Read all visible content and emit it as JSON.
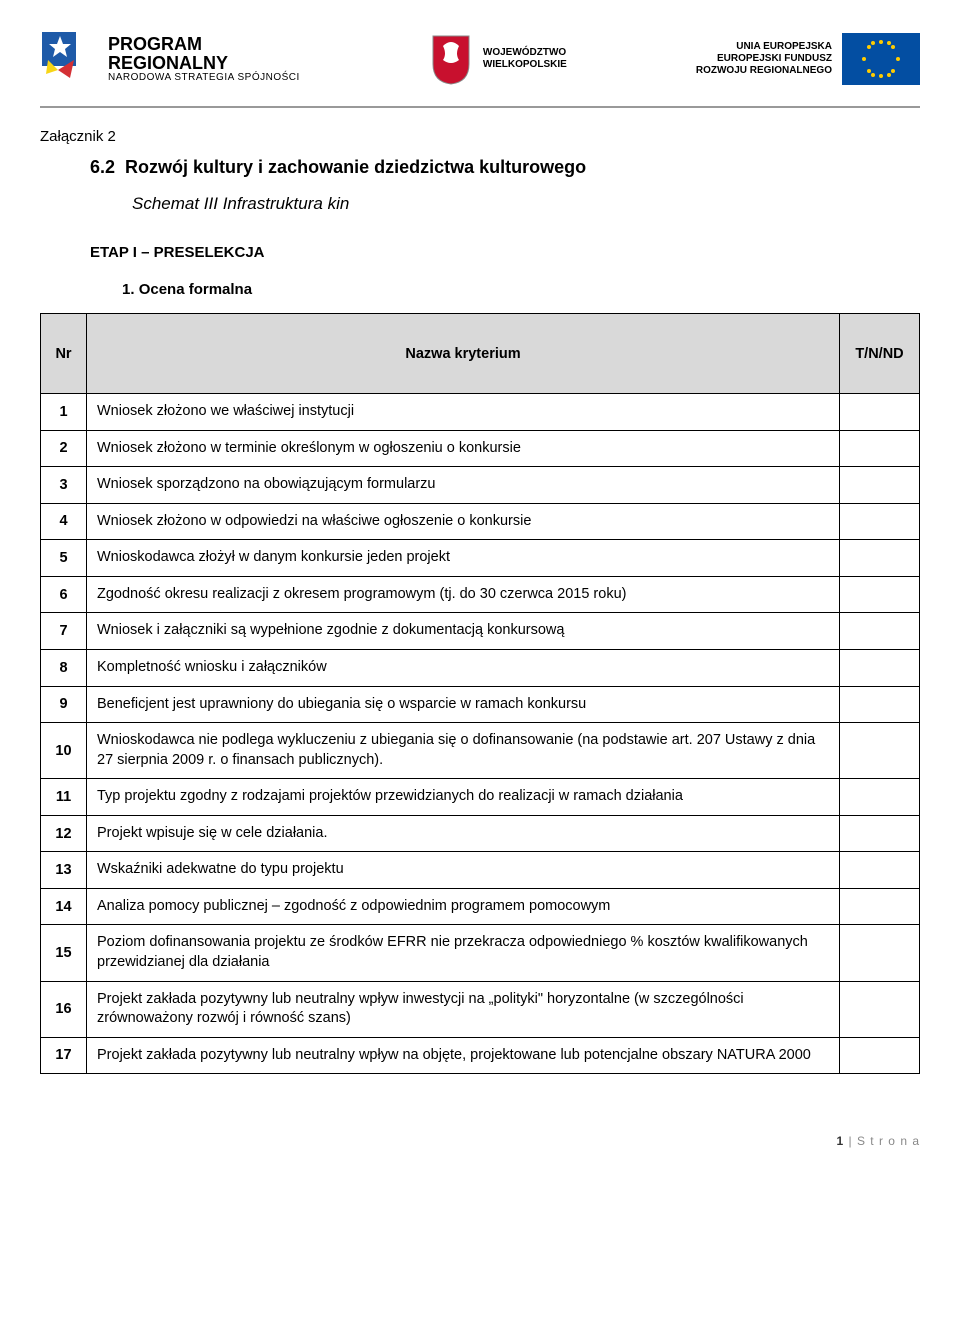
{
  "header": {
    "prog_logo": {
      "line1": "PROGRAM",
      "line2": "REGIONALNY",
      "sub": "NARODOWA STRATEGIA SPÓJNOŚCI"
    },
    "woj": {
      "line1": "WOJEWÓDZTWO",
      "line2": "WIELKOPOLSKIE"
    },
    "eu": {
      "line1": "UNIA EUROPEJSKA",
      "line2": "EUROPEJSKI FUNDUSZ",
      "line3": "ROZWOJU REGIONALNEGO"
    }
  },
  "attachment": "Załącznik 2",
  "section_num": "6.2",
  "section_title": "Rozwój kultury i zachowanie dziedzictwa kulturowego",
  "schemat": "Schemat III Infrastruktura kin",
  "etap": "ETAP I – PRESELEKCJA",
  "ocena_num": "1.",
  "ocena_title": "Ocena formalna",
  "table": {
    "headers": {
      "nr": "Nr",
      "name": "Nazwa kryterium",
      "tn": "T/N/ND"
    },
    "rows": [
      {
        "nr": "1",
        "desc": "Wniosek złożono we właściwej instytucji"
      },
      {
        "nr": "2",
        "desc": "Wniosek złożono w terminie określonym w ogłoszeniu o konkursie"
      },
      {
        "nr": "3",
        "desc": "Wniosek sporządzono na obowiązującym formularzu"
      },
      {
        "nr": "4",
        "desc": "Wniosek złożono w odpowiedzi na właściwe ogłoszenie o konkursie"
      },
      {
        "nr": "5",
        "desc": "Wnioskodawca złożył w danym konkursie jeden projekt"
      },
      {
        "nr": "6",
        "desc": "Zgodność okresu realizacji z okresem programowym (tj. do 30 czerwca 2015 roku)"
      },
      {
        "nr": "7",
        "desc": "Wniosek i załączniki są wypełnione zgodnie z dokumentacją konkursową"
      },
      {
        "nr": "8",
        "desc": "Kompletność wniosku i załączników"
      },
      {
        "nr": "9",
        "desc": "Beneficjent jest uprawniony do ubiegania się o wsparcie w ramach konkursu"
      },
      {
        "nr": "10",
        "desc": "Wnioskodawca nie podlega wykluczeniu z ubiegania się o dofinansowanie (na podstawie art. 207 Ustawy z dnia 27 sierpnia 2009 r. o finansach publicznych)."
      },
      {
        "nr": "11",
        "desc": "Typ projektu zgodny z rodzajami projektów przewidzianych do realizacji w ramach działania"
      },
      {
        "nr": "12",
        "desc": "Projekt wpisuje się w cele działania."
      },
      {
        "nr": "13",
        "desc": "Wskaźniki adekwatne do typu projektu"
      },
      {
        "nr": "14",
        "desc": "Analiza pomocy publicznej – zgodność z odpowiednim programem pomocowym"
      },
      {
        "nr": "15",
        "desc": "Poziom dofinansowania projektu ze środków EFRR nie przekracza odpowiedniego % kosztów kwalifikowanych przewidzianej dla działania"
      },
      {
        "nr": "16",
        "desc": "Projekt zakłada pozytywny lub neutralny wpływ inwestycji na „polityki\" horyzontalne (w szczególności zrównoważony rozwój i równość szans)"
      },
      {
        "nr": "17",
        "desc": "Projekt zakłada pozytywny lub neutralny wpływ na objęte, projektowane lub potencjalne obszary NATURA 2000"
      }
    ]
  },
  "footer": {
    "page": "1",
    "sep": " | ",
    "label": "S t r o n a"
  },
  "colors": {
    "header_bg": "#d9d9d9",
    "border": "#000000",
    "eu_blue": "#034ea2",
    "eu_gold": "#ffcc00",
    "prog_blue": "#1e5aa8",
    "prog_yellow": "#f7d516",
    "prog_red": "#d43035",
    "shield_red": "#c8102e"
  }
}
